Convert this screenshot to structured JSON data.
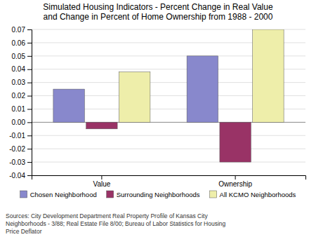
{
  "chart_data": {
    "type": "bar",
    "title": "Simulated Housing Indicators - Percent Change in Real Value\nand Change in Percent of Home Ownership from 1988 - 2000",
    "categories": [
      "Value",
      "Ownership"
    ],
    "series": [
      {
        "name": "Chosen Neighborhood",
        "color": "#8888CC",
        "values": [
          0.025,
          0.05
        ]
      },
      {
        "name": "Surrounding Neighborhoods",
        "color": "#993366",
        "values": [
          -0.005,
          -0.03
        ]
      },
      {
        "name": "All KCMO Neighborhoods",
        "color": "#EEEEAA",
        "values": [
          0.038,
          0.07
        ]
      }
    ],
    "ylim": [
      -0.04,
      0.07
    ],
    "yticks": [
      -0.04,
      -0.03,
      -0.02,
      -0.01,
      {
        "value": 0,
        "label": "0.00"
      },
      0.01,
      0.02,
      0.03,
      0.04,
      0.05,
      0.06,
      0.07
    ],
    "grid": true,
    "legend": "bottom",
    "annotations": [
      "Sources: City Development Department Real Property Profile of Kansas City\nNeighborhoods - 3/88; Real Estate File 8/00; Bureau of Labor Statistics for Housing\nPrice Deflator"
    ]
  }
}
